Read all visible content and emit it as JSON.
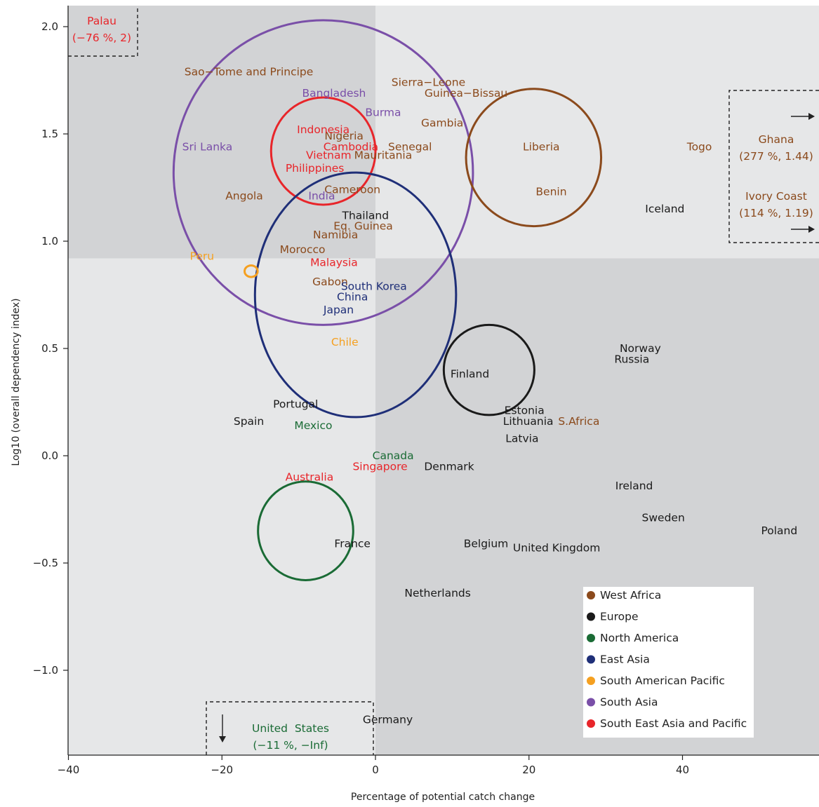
{
  "chart_data": {
    "type": "scatter",
    "xlabel": "Percentage of potential catch change",
    "ylabel": "Log10 (overall dependency index)",
    "xlim": [
      -40,
      58
    ],
    "ylim": [
      -1.4,
      2.1
    ],
    "x_ticks": [
      -40,
      -20,
      0,
      20,
      40
    ],
    "x_tick_labels": [
      "−40",
      "−20",
      "0",
      "20",
      "40"
    ],
    "y_ticks": [
      2.0,
      1.5,
      1.0,
      0.5,
      0.0,
      -0.5,
      -1.0
    ],
    "y_tick_labels": [
      "2.0",
      "1.5",
      "1.0",
      "0.5",
      "0.0",
      "−0.5",
      "−1.0"
    ],
    "quadrant_split": {
      "x": 0,
      "y": 0.92
    },
    "quadrant_colors": {
      "dark": "#d2d3d5",
      "light": "#e6e7e8"
    },
    "legend": {
      "placement": "bottom-right",
      "entries": [
        {
          "name": "West Africa",
          "color": "#8b4a1c"
        },
        {
          "name": "Europe",
          "color": "#1a1a1a"
        },
        {
          "name": "North America",
          "color": "#1a6b35"
        },
        {
          "name": "East Asia",
          "color": "#1f2f78"
        },
        {
          "name": "South American Pacific",
          "color": "#f5a020"
        },
        {
          "name": "South Asia",
          "color": "#7a4fa8"
        },
        {
          "name": "South East Asia and Pacific",
          "color": "#e8252a"
        }
      ]
    },
    "region_circles": [
      {
        "region": "South Asia",
        "x": -6.8,
        "y": 1.32,
        "rx": 19.5,
        "ry": 0.71
      },
      {
        "region": "South East Asia and Pacific",
        "x": -6.8,
        "y": 1.42,
        "rx": 6.8,
        "ry": 0.25
      },
      {
        "region": "East Asia",
        "x": -2.6,
        "y": 0.75,
        "rx": 13.1,
        "ry": 0.57
      },
      {
        "region": "West Africa",
        "x": 20.6,
        "y": 1.39,
        "rx": 8.8,
        "ry": 0.32
      },
      {
        "region": "Europe",
        "x": 14.8,
        "y": 0.4,
        "rx": 5.9,
        "ry": 0.21
      },
      {
        "region": "North America",
        "x": -9.1,
        "y": -0.35,
        "rx": 6.2,
        "ry": 0.23
      },
      {
        "region": "South American Pacific",
        "x": -16.2,
        "y": 0.86,
        "rx": 0.85,
        "ry": 0.027
      }
    ],
    "countries": [
      {
        "name": "Sao−Tome and Principe",
        "region": "West Africa",
        "x": -16.5,
        "y": 1.79
      },
      {
        "name": "Sierra−Leone",
        "region": "West Africa",
        "x": 6.9,
        "y": 1.74
      },
      {
        "name": "Guinea−Bissau",
        "region": "West Africa",
        "x": 11.8,
        "y": 1.69
      },
      {
        "name": "Gambia",
        "region": "West Africa",
        "x": 8.7,
        "y": 1.55
      },
      {
        "name": "Senegal",
        "region": "West Africa",
        "x": 4.5,
        "y": 1.44
      },
      {
        "name": "Mauritania",
        "region": "West Africa",
        "x": 1.0,
        "y": 1.4
      },
      {
        "name": "Nigeria",
        "region": "West Africa",
        "x": -4.1,
        "y": 1.49
      },
      {
        "name": "Cameroon",
        "region": "West Africa",
        "x": -3.0,
        "y": 1.24
      },
      {
        "name": "Angola",
        "region": "West Africa",
        "x": -17.1,
        "y": 1.21
      },
      {
        "name": "Eq. Guinea",
        "region": "West Africa",
        "x": -1.6,
        "y": 1.07
      },
      {
        "name": "Namibia",
        "region": "West Africa",
        "x": -5.2,
        "y": 1.03
      },
      {
        "name": "Morocco",
        "region": "West Africa",
        "x": -9.5,
        "y": 0.96
      },
      {
        "name": "Gabon",
        "region": "West Africa",
        "x": -5.9,
        "y": 0.81
      },
      {
        "name": "Liberia",
        "region": "West Africa",
        "x": 21.6,
        "y": 1.44
      },
      {
        "name": "Benin",
        "region": "West Africa",
        "x": 22.9,
        "y": 1.23
      },
      {
        "name": "Togo",
        "region": "West Africa",
        "x": 42.2,
        "y": 1.44
      },
      {
        "name": "S.Africa",
        "region": "West Africa",
        "x": 26.5,
        "y": 0.16
      },
      {
        "name": "Thailand",
        "region": "Europe",
        "x": -1.3,
        "y": 1.12
      },
      {
        "name": "Iceland",
        "region": "Europe",
        "x": 37.7,
        "y": 1.15
      },
      {
        "name": "Finland",
        "region": "Europe",
        "x": 12.3,
        "y": 0.38
      },
      {
        "name": "Norway",
        "region": "Europe",
        "x": 34.5,
        "y": 0.5
      },
      {
        "name": "Russia",
        "region": "Europe",
        "x": 33.4,
        "y": 0.45
      },
      {
        "name": "Estonia",
        "region": "Europe",
        "x": 19.4,
        "y": 0.21
      },
      {
        "name": "Lithuania",
        "region": "Europe",
        "x": 19.9,
        "y": 0.16
      },
      {
        "name": "Latvia",
        "region": "Europe",
        "x": 19.1,
        "y": 0.08
      },
      {
        "name": "Portugal",
        "region": "Europe",
        "x": -10.4,
        "y": 0.24
      },
      {
        "name": "Spain",
        "region": "Europe",
        "x": -16.5,
        "y": 0.16
      },
      {
        "name": "Denmark",
        "region": "Europe",
        "x": 9.6,
        "y": -0.05
      },
      {
        "name": "Ireland",
        "region": "Europe",
        "x": 33.7,
        "y": -0.14
      },
      {
        "name": "Sweden",
        "region": "Europe",
        "x": 37.5,
        "y": -0.29
      },
      {
        "name": "Poland",
        "region": "Europe",
        "x": 52.6,
        "y": -0.35
      },
      {
        "name": "France",
        "region": "Europe",
        "x": -3.0,
        "y": -0.41
      },
      {
        "name": "Belgium",
        "region": "Europe",
        "x": 14.4,
        "y": -0.41
      },
      {
        "name": "United Kingdom",
        "region": "Europe",
        "x": 23.6,
        "y": -0.43
      },
      {
        "name": "Netherlands",
        "region": "Europe",
        "x": 8.1,
        "y": -0.64
      },
      {
        "name": "Germany",
        "region": "Europe",
        "x": 1.6,
        "y": -1.23
      },
      {
        "name": "Mexico",
        "region": "North America",
        "x": -8.1,
        "y": 0.14
      },
      {
        "name": "Canada",
        "region": "North America",
        "x": 2.3,
        "y": 0.0
      },
      {
        "name": "South Korea",
        "region": "East Asia",
        "x": -0.2,
        "y": 0.79
      },
      {
        "name": "China",
        "region": "East Asia",
        "x": -3.0,
        "y": 0.74
      },
      {
        "name": "Japan",
        "region": "East Asia",
        "x": -4.8,
        "y": 0.68
      },
      {
        "name": "Peru",
        "region": "South American Pacific",
        "x": -22.6,
        "y": 0.93
      },
      {
        "name": "Chile",
        "region": "South American Pacific",
        "x": -4.0,
        "y": 0.53
      },
      {
        "name": "Bangladesh",
        "region": "South Asia",
        "x": -5.4,
        "y": 1.69
      },
      {
        "name": "Burma",
        "region": "South Asia",
        "x": 1.0,
        "y": 1.6
      },
      {
        "name": "Sri Lanka",
        "region": "South Asia",
        "x": -21.9,
        "y": 1.44
      },
      {
        "name": "India",
        "region": "South Asia",
        "x": -7.0,
        "y": 1.21
      },
      {
        "name": "Indonesia",
        "region": "South East Asia and Pacific",
        "x": -6.8,
        "y": 1.52
      },
      {
        "name": "Cambodia",
        "region": "South East Asia and Pacific",
        "x": -3.2,
        "y": 1.44
      },
      {
        "name": "Vietnam",
        "region": "South East Asia and Pacific",
        "x": -6.1,
        "y": 1.4
      },
      {
        "name": "Philippines",
        "region": "South East Asia and Pacific",
        "x": -7.9,
        "y": 1.34
      },
      {
        "name": "Malaysia",
        "region": "South East Asia and Pacific",
        "x": -5.4,
        "y": 0.9
      },
      {
        "name": "Singapore",
        "region": "South East Asia and Pacific",
        "x": 0.6,
        "y": -0.05
      },
      {
        "name": "Australia",
        "region": "South East Asia and Pacific",
        "x": -8.6,
        "y": -0.1
      }
    ],
    "offscale_annotations": [
      {
        "name": "Palau",
        "value_label": "(−76 %, 2)",
        "region": "South East Asia and Pacific"
      },
      {
        "name": "Ghana",
        "value_label": "(277 %, 1.44)",
        "region": "West Africa"
      },
      {
        "name": "Ivory Coast",
        "value_label": "(114 %, 1.19)",
        "region": "West Africa"
      },
      {
        "name": "United  States",
        "value_label": "(−11 %, −Inf)",
        "region": "North America"
      }
    ]
  }
}
